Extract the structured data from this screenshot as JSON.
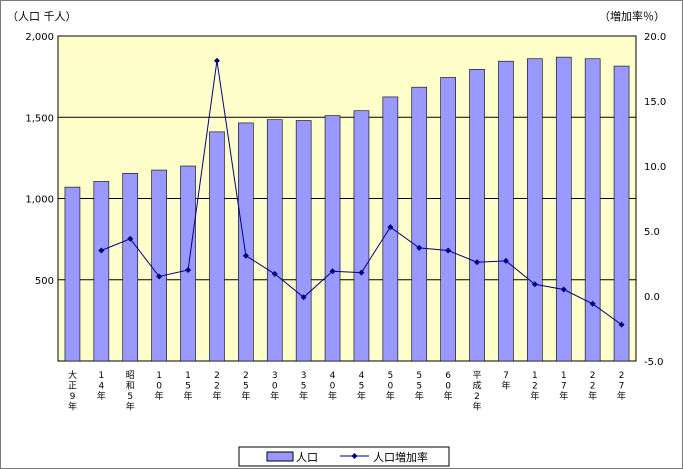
{
  "chart_data": {
    "type": "bar",
    "y_left_unit": "（人口 千人）",
    "y_right_unit": "（増加率％）",
    "ylim_left": [
      0,
      2000
    ],
    "ylim_right": [
      -5,
      20
    ],
    "y_left_ticks": [
      "500",
      "1,000",
      "1,500",
      "2,000"
    ],
    "y_left_tick_values": [
      500,
      1000,
      1500,
      2000
    ],
    "y_right_ticks": [
      "-5.0",
      "0.0",
      "5.0",
      "10.0",
      "15.0",
      "20.0"
    ],
    "y_right_tick_values": [
      -5,
      0,
      5,
      10,
      15,
      20
    ],
    "grid_values_left": [
      500,
      1000,
      1500
    ],
    "categories": [
      [
        "大",
        "正",
        "9",
        "年"
      ],
      [
        "1",
        "4",
        "年"
      ],
      [
        "昭",
        "和",
        "5",
        "年"
      ],
      [
        "1",
        "0",
        "年"
      ],
      [
        "1",
        "5",
        "年"
      ],
      [
        "2",
        "2",
        "年"
      ],
      [
        "2",
        "5",
        "年"
      ],
      [
        "3",
        "0",
        "年"
      ],
      [
        "3",
        "5",
        "年"
      ],
      [
        "4",
        "0",
        "年"
      ],
      [
        "4",
        "5",
        "年"
      ],
      [
        "5",
        "0",
        "年"
      ],
      [
        "5",
        "5",
        "年"
      ],
      [
        "6",
        "0",
        "年"
      ],
      [
        "平",
        "成",
        "2",
        "年"
      ],
      [
        "7",
        "年"
      ],
      [
        "1",
        "2",
        "年"
      ],
      [
        "1",
        "7",
        "年"
      ],
      [
        "2",
        "2",
        "年"
      ],
      [
        "2",
        "7",
        "年"
      ]
    ],
    "series": [
      {
        "name": "人口",
        "type": "bar",
        "axis": "left",
        "values": [
          1070,
          1105,
          1155,
          1175,
          1200,
          1410,
          1465,
          1485,
          1480,
          1510,
          1540,
          1625,
          1685,
          1745,
          1795,
          1845,
          1860,
          1870,
          1860,
          1815
        ]
      },
      {
        "name": "人口増加率",
        "type": "line",
        "axis": "right",
        "values": [
          null,
          3.5,
          4.4,
          1.5,
          2.0,
          18.1,
          3.1,
          1.7,
          -0.1,
          1.9,
          1.8,
          5.3,
          3.7,
          3.5,
          2.6,
          2.7,
          0.9,
          0.5,
          -0.6,
          -2.2
        ]
      }
    ],
    "legend": "bottom",
    "grid": true,
    "colors": {
      "plot_background": "#ffffcc",
      "bar_fill": "#9999ff",
      "bar_stroke": "#000000",
      "line": "#000080",
      "gridline": "#000000"
    }
  }
}
